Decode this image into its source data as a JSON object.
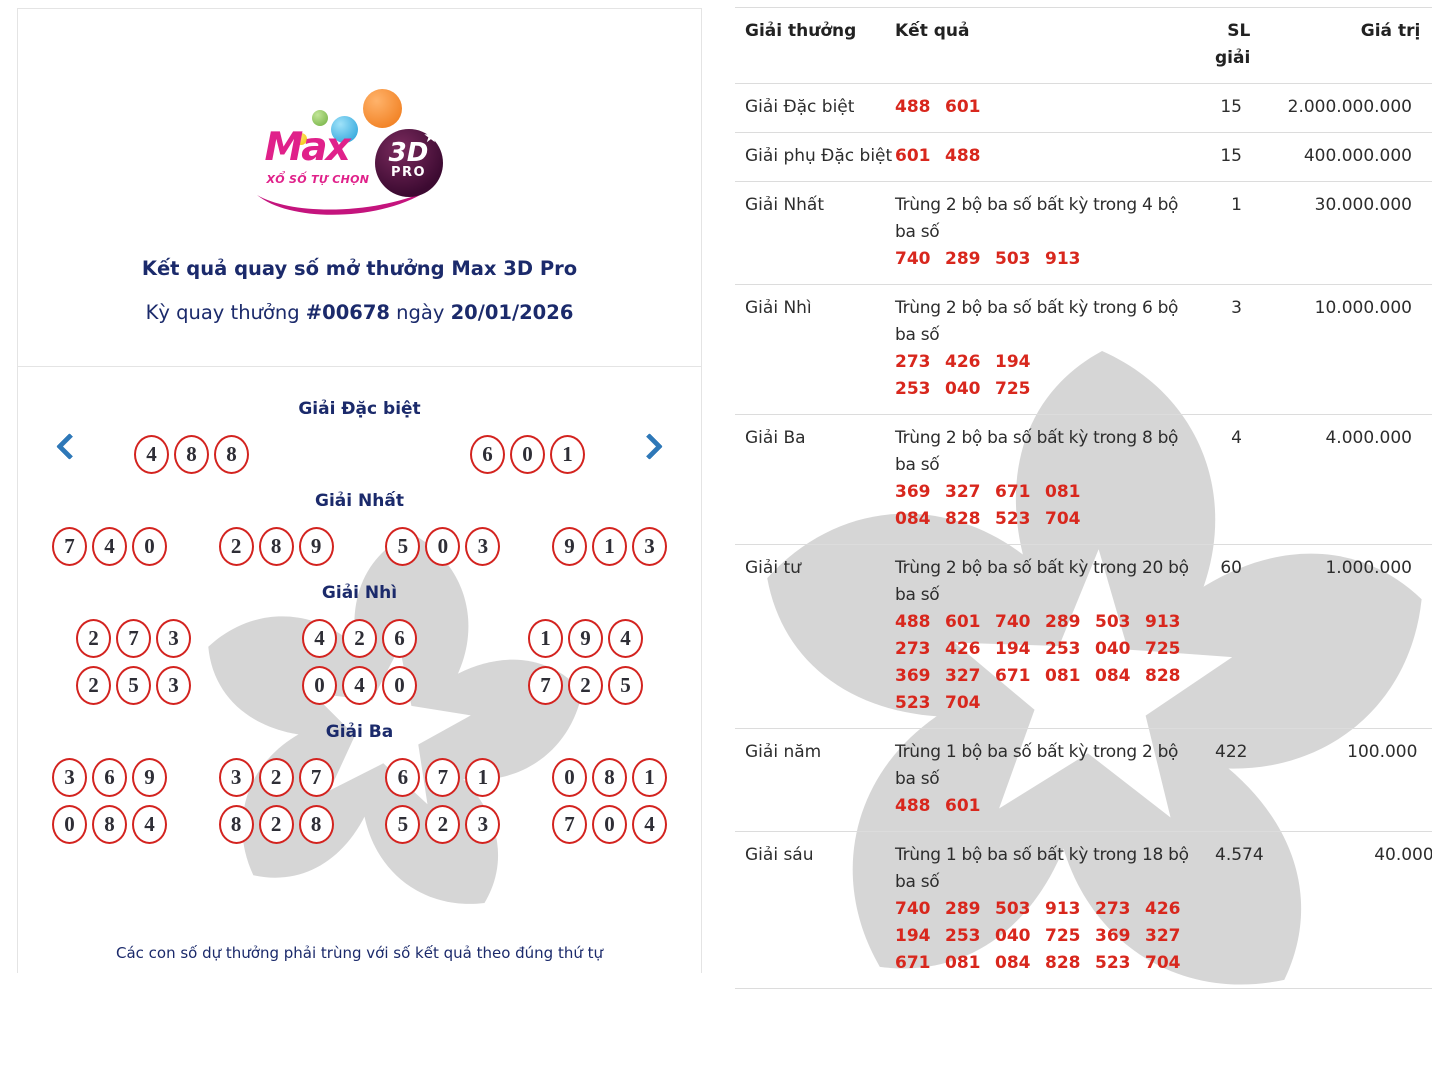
{
  "colors": {
    "accent_red": "#d8271d",
    "circle_border": "#d3231f",
    "heading_navy": "#1b2a6b",
    "arrow_blue": "#2e78b8",
    "divider_gray": "#dcdcdc",
    "watermark_gray": "#d6d6d6",
    "logo_pink": "#e0218a",
    "logo_purple": "#3c0a31",
    "ball_yellow": "#f2c200",
    "ball_green": "#6fae3e",
    "ball_blue": "#1e9cd7",
    "ball_orange": "#ee7512",
    "body_text": "#2d2d2d"
  },
  "left_panel": {
    "logo": {
      "brand": "Max",
      "product": "3D",
      "tier": "PRO",
      "tagline": "XỔ SỐ TỰ CHỌN",
      "star": "★"
    },
    "title": "Kết quả quay số mở thưởng Max 3D Pro",
    "subtitle": {
      "prefix": "Kỳ quay thưởng ",
      "draw_id": "#00678",
      "middle": " ngày ",
      "date": "20/01/2026"
    },
    "sections": [
      {
        "title": "Giải Đặc biệt",
        "rows": [
          [
            "488",
            "601"
          ]
        ]
      },
      {
        "title": "Giải Nhất",
        "rows": [
          [
            "740",
            "289",
            "503",
            "913"
          ]
        ]
      },
      {
        "title": "Giải Nhì",
        "rows": [
          [
            "273",
            "426",
            "194"
          ],
          [
            "253",
            "040",
            "725"
          ]
        ]
      },
      {
        "title": "Giải Ba",
        "rows": [
          [
            "369",
            "327",
            "671",
            "081"
          ],
          [
            "084",
            "828",
            "523",
            "704"
          ]
        ]
      }
    ],
    "footer": "Các con số dự thưởng phải trùng với số kết quả theo đúng thứ tự"
  },
  "table": {
    "headers": [
      "Giải thưởng",
      "Kết quả",
      "SL giải",
      "Giá trị"
    ],
    "rows": [
      {
        "prize": "Giải Đặc biệt",
        "desc_lines": [],
        "num_lines": [
          [
            "488",
            "601"
          ]
        ],
        "count": "15",
        "value": "2.000.000.000"
      },
      {
        "prize": "Giải phụ Đặc biệt",
        "desc_lines": [],
        "num_lines": [
          [
            "601",
            "488"
          ]
        ],
        "count": "15",
        "value": "400.000.000"
      },
      {
        "prize": "Giải Nhất",
        "desc_lines": [
          "Trùng 2 bộ ba số bất kỳ trong 4 bộ",
          "ba số"
        ],
        "num_lines": [
          [
            "740",
            "289",
            "503",
            "913"
          ]
        ],
        "count": "1",
        "value": "30.000.000"
      },
      {
        "prize": "Giải Nhì",
        "desc_lines": [
          "Trùng 2 bộ ba số bất kỳ trong 6 bộ",
          "ba số"
        ],
        "num_lines": [
          [
            "273",
            "426",
            "194"
          ],
          [
            "253",
            "040",
            "725"
          ]
        ],
        "count": "3",
        "value": "10.000.000"
      },
      {
        "prize": "Giải Ba",
        "desc_lines": [
          "Trùng 2 bộ ba số bất kỳ trong 8 bộ",
          "ba số"
        ],
        "num_lines": [
          [
            "369",
            "327",
            "671",
            "081"
          ],
          [
            "084",
            "828",
            "523",
            "704"
          ]
        ],
        "count": "4",
        "value": "4.000.000"
      },
      {
        "prize": "Giải tư",
        "desc_lines": [
          "Trùng 2 bộ ba số bất kỳ trong 20 bộ",
          "ba số"
        ],
        "num_lines": [
          [
            "488",
            "601",
            "740",
            "289",
            "503",
            "913"
          ],
          [
            "273",
            "426",
            "194",
            "253",
            "040",
            "725"
          ],
          [
            "369",
            "327",
            "671",
            "081",
            "084",
            "828"
          ],
          [
            "523",
            "704"
          ]
        ],
        "count": "60",
        "value": "1.000.000"
      },
      {
        "prize": "Giải năm",
        "desc_lines": [
          "Trùng 1 bộ ba số bất kỳ trong 2 bộ",
          "ba số"
        ],
        "num_lines": [
          [
            "488",
            "601"
          ]
        ],
        "count": "422",
        "value": "100.000"
      },
      {
        "prize": "Giải sáu",
        "desc_lines": [
          "Trùng 1 bộ ba số bất kỳ trong 18 bộ",
          "ba số"
        ],
        "num_lines": [
          [
            "740",
            "289",
            "503",
            "913",
            "273",
            "426"
          ],
          [
            "194",
            "253",
            "040",
            "725",
            "369",
            "327"
          ],
          [
            "671",
            "081",
            "084",
            "828",
            "523",
            "704"
          ]
        ],
        "count": "4.574",
        "value": "40.000"
      }
    ]
  }
}
